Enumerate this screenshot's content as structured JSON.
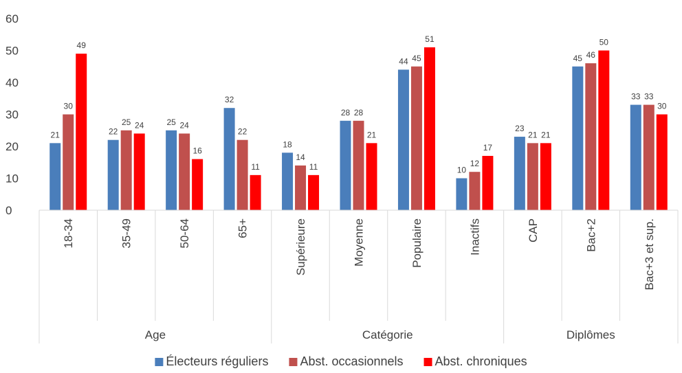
{
  "chart_data": {
    "type": "bar",
    "title": "",
    "xlabel": "",
    "ylabel": "",
    "ylim": [
      0,
      60
    ],
    "yticks": [
      "0",
      "10",
      "20",
      "30",
      "40",
      "50",
      "60"
    ],
    "grid": false,
    "legend_position": "bottom",
    "colors": [
      "#4a7ebb",
      "#c0504d",
      "#ff0000"
    ],
    "groups": [
      {
        "label": "Age",
        "categories": [
          "18-34",
          "35-49",
          "50-64",
          "65+"
        ]
      },
      {
        "label": "Catégorie",
        "categories": [
          "Supérieure",
          "Moyenne",
          "Populaire",
          "Inactifs"
        ]
      },
      {
        "label": "Diplômes",
        "categories": [
          "CAP",
          "Bac+2",
          "Bac+3 et sup."
        ]
      }
    ],
    "categories": [
      "18-34",
      "35-49",
      "50-64",
      "65+",
      "Supérieure",
      "Moyenne",
      "Populaire",
      "Inactifs",
      "CAP",
      "Bac+2",
      "Bac+3 et sup."
    ],
    "series": [
      {
        "name": "Électeurs réguliers",
        "values": [
          21,
          22,
          25,
          32,
          18,
          28,
          44,
          10,
          23,
          45,
          33
        ]
      },
      {
        "name": "Abst. occasionnels",
        "values": [
          30,
          25,
          24,
          22,
          14,
          28,
          45,
          12,
          21,
          46,
          33
        ]
      },
      {
        "name": "Abst. chroniques",
        "values": [
          49,
          24,
          16,
          11,
          11,
          21,
          51,
          17,
          21,
          50,
          30
        ]
      }
    ]
  }
}
